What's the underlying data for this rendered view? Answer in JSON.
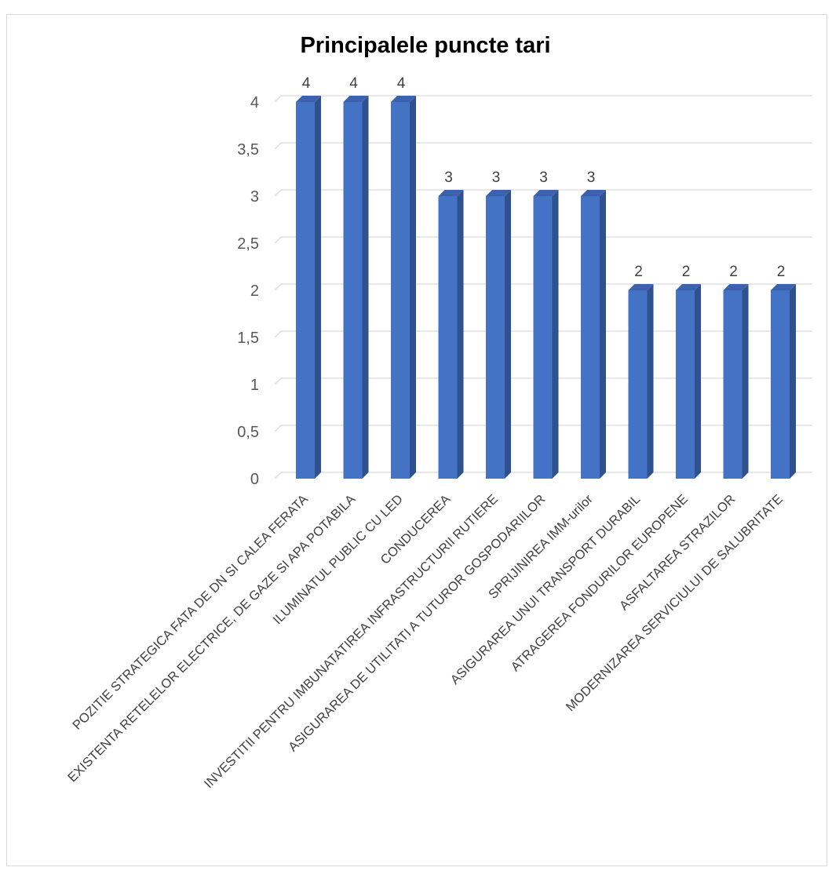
{
  "chart_data": {
    "type": "bar",
    "title": "Principalele puncte tari",
    "xlabel": "",
    "ylabel": "",
    "ylim": [
      0,
      4
    ],
    "yticks": [
      "0",
      "0,5",
      "1",
      "1,5",
      "2",
      "2,5",
      "3",
      "3,5",
      "4"
    ],
    "grid": true,
    "legend": "none",
    "bar_color": "#4472c4",
    "categories": [
      "POZITIE STRATEGICA FATA DE DN SI CALEA FERATA",
      "EXISTENTA RETELELOR ELECTRICE, DE GAZE SI APA POTABILA",
      "ILUMINATUL PUBLIC CU LED",
      "CONDUCEREA",
      "INVESTITII PENTRU IMBUNATATIREA INFRASTRUCTURII RUTIERE",
      "ASIGURAREA DE UTILITATI A TUTUROR GOSPODARIILOR",
      "SPRIJINIREA IMM-urilor",
      "ASIGURAREA UNUI TRANSPORT DURABIL",
      "ATRAGEREA FONDURILOR EUROPENE",
      "ASFALTAREA STRAZILOR",
      "MODERNIZAREA SERVICIULUI DE SALUBRITATE"
    ],
    "values": [
      4,
      4,
      4,
      3,
      3,
      3,
      3,
      2,
      2,
      2,
      2
    ],
    "data_labels": [
      "4",
      "4",
      "4",
      "3",
      "3",
      "3",
      "3",
      "2",
      "2",
      "2",
      "2"
    ]
  }
}
